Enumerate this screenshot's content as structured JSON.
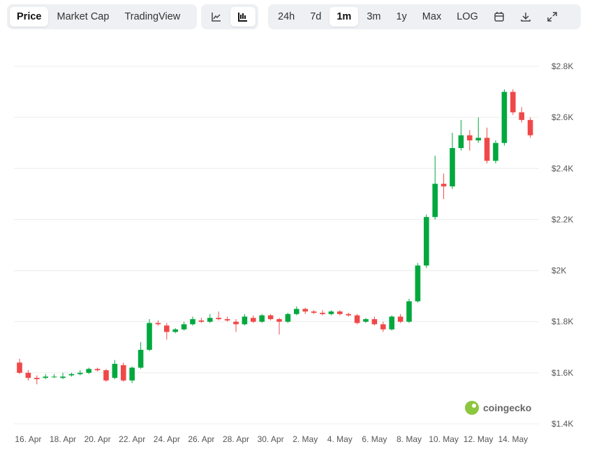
{
  "toolbar": {
    "tabs": [
      "Price",
      "Market Cap",
      "TradingView"
    ],
    "ranges": [
      "24h",
      "7d",
      "1m",
      "3m",
      "1y",
      "Max",
      "LOG"
    ]
  },
  "watermark": "coingecko",
  "chart_data": {
    "type": "candlestick",
    "categories": [
      null,
      "16. Apr",
      null,
      null,
      null,
      "18. Apr",
      null,
      null,
      null,
      "20. Apr",
      null,
      null,
      null,
      "22. Apr",
      null,
      null,
      null,
      "24. Apr",
      null,
      null,
      null,
      "26. Apr",
      null,
      null,
      null,
      "28. Apr",
      null,
      null,
      null,
      "30. Apr",
      null,
      null,
      null,
      "2. May",
      null,
      null,
      null,
      "4. May",
      null,
      null,
      null,
      "6. May",
      null,
      null,
      null,
      "8. May",
      null,
      null,
      null,
      "10. May",
      null,
      null,
      null,
      "12. May",
      null,
      null,
      null,
      "14. May",
      null,
      null
    ],
    "open": [
      1640,
      1600,
      1580,
      1580,
      1585,
      1580,
      1590,
      1595,
      1600,
      1615,
      1610,
      1580,
      1630,
      1570,
      1620,
      1690,
      1795,
      1785,
      1760,
      1770,
      1790,
      1805,
      1800,
      1815,
      1810,
      1800,
      1790,
      1815,
      1800,
      1825,
      1810,
      1800,
      1830,
      1850,
      1840,
      1835,
      1830,
      1840,
      1830,
      1825,
      1800,
      1810,
      1790,
      1770,
      1820,
      1800,
      1880,
      2020,
      2210,
      2340,
      2330,
      2480,
      2530,
      2510,
      2520,
      2430,
      2500,
      2700,
      2620,
      2590
    ],
    "high": [
      1655,
      1610,
      1590,
      1595,
      1595,
      1600,
      1600,
      1610,
      1620,
      1620,
      1615,
      1650,
      1640,
      1625,
      1720,
      1810,
      1805,
      1795,
      1775,
      1800,
      1820,
      1815,
      1830,
      1840,
      1820,
      1810,
      1830,
      1825,
      1830,
      1830,
      1815,
      1835,
      1860,
      1855,
      1845,
      1845,
      1845,
      1845,
      1835,
      1830,
      1815,
      1820,
      1800,
      1825,
      1830,
      1890,
      2030,
      2220,
      2450,
      2380,
      2540,
      2590,
      2550,
      2600,
      2560,
      2510,
      2710,
      2710,
      2640,
      2600
    ],
    "low": [
      1595,
      1570,
      1555,
      1575,
      1580,
      1575,
      1585,
      1590,
      1595,
      1605,
      1565,
      1575,
      1565,
      1560,
      1615,
      1685,
      1785,
      1730,
      1755,
      1765,
      1785,
      1795,
      1795,
      1805,
      1800,
      1760,
      1785,
      1795,
      1795,
      1805,
      1750,
      1795,
      1825,
      1830,
      1830,
      1825,
      1825,
      1825,
      1820,
      1790,
      1795,
      1785,
      1760,
      1765,
      1795,
      1795,
      1875,
      2010,
      2200,
      2280,
      2320,
      2470,
      2470,
      2500,
      2420,
      2420,
      2490,
      2610,
      2580,
      2520
    ],
    "close": [
      1600,
      1580,
      1575,
      1585,
      1585,
      1585,
      1595,
      1600,
      1615,
      1610,
      1570,
      1635,
      1570,
      1620,
      1690,
      1795,
      1790,
      1760,
      1770,
      1790,
      1810,
      1800,
      1815,
      1810,
      1805,
      1790,
      1820,
      1800,
      1825,
      1810,
      1800,
      1830,
      1850,
      1840,
      1835,
      1830,
      1840,
      1830,
      1825,
      1795,
      1810,
      1790,
      1770,
      1820,
      1800,
      1880,
      2020,
      2210,
      2340,
      2330,
      2480,
      2530,
      2510,
      2520,
      2430,
      2500,
      2700,
      2620,
      2590,
      2530
    ],
    "up_color": "#00a83e",
    "down_color": "#f04848",
    "ylim": [
      1400,
      2800
    ],
    "yticks": [
      {
        "value": 1400,
        "label": "$1.4K"
      },
      {
        "value": 1600,
        "label": "$1.6K"
      },
      {
        "value": 1800,
        "label": "$1.8K"
      },
      {
        "value": 2000,
        "label": "$2K"
      },
      {
        "value": 2200,
        "label": "$2.2K"
      },
      {
        "value": 2400,
        "label": "$2.4K"
      },
      {
        "value": 2600,
        "label": "$2.6K"
      },
      {
        "value": 2800,
        "label": "$2.8K"
      }
    ],
    "grid": true
  }
}
